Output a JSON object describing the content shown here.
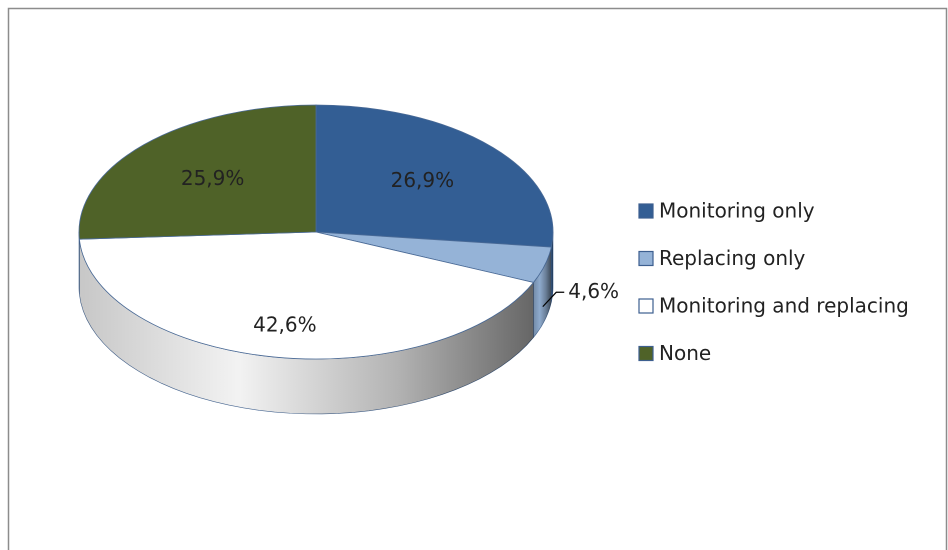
{
  "chart_data": {
    "type": "pie",
    "categories": [
      "Monitoring only",
      "Replacing only",
      "Monitoring and replacing",
      "None"
    ],
    "values": [
      26.9,
      4.6,
      42.6,
      25.9
    ],
    "value_labels": [
      "26,9%",
      "4,6%",
      "42,6%",
      "25,9%"
    ],
    "colors": [
      "#335e94",
      "#95b3d7",
      "#ffffff",
      "#4f6228"
    ],
    "legend": "right"
  }
}
